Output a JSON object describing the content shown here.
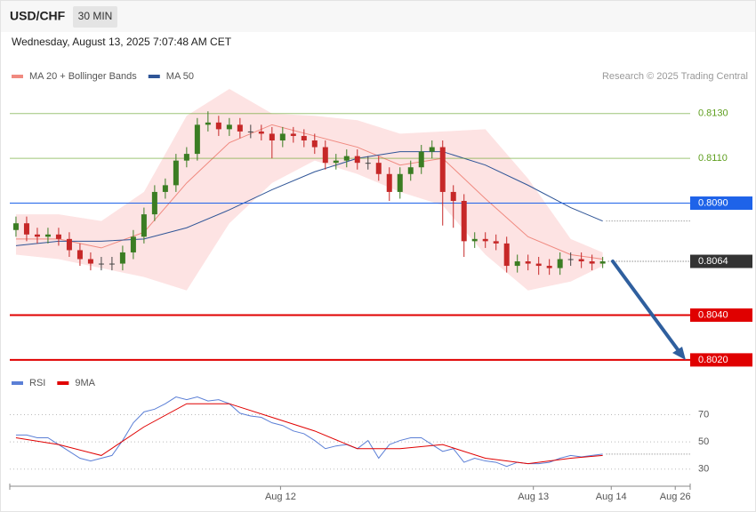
{
  "header": {
    "symbol": "USD/CHF",
    "timeframe": "30 MIN",
    "date": "Wednesday, August 13, 2025 7:07:48 AM CET"
  },
  "credit": "Research © 2025 Trading Central",
  "chart_data": [
    {
      "type": "candlestick",
      "xlim": [
        -0.58,
        63.2
      ],
      "ylim": [
        0.8014,
        0.8143
      ],
      "x": [
        0,
        1,
        2,
        3,
        4,
        5,
        6,
        7,
        8,
        9,
        10,
        11,
        12,
        13,
        14,
        15,
        16,
        17,
        18,
        19,
        20,
        21,
        22,
        23,
        24,
        25,
        26,
        27,
        28,
        29,
        30,
        31,
        32,
        33,
        34,
        35,
        36,
        37,
        38,
        39,
        40,
        41,
        42,
        43,
        44,
        45,
        46,
        47,
        48,
        49,
        50,
        51,
        52,
        53,
        54,
        55
      ],
      "candles": {
        "up_color": "#3b7d23",
        "down_color": "#c62828",
        "open": [
          0.8078,
          0.8081,
          0.8076,
          0.8075,
          0.8076,
          0.8074,
          0.8069,
          0.8065,
          0.8063,
          0.8063,
          0.8063,
          0.8068,
          0.8075,
          0.8085,
          0.8095,
          0.8098,
          0.8109,
          0.8112,
          0.8125,
          0.8126,
          0.8123,
          0.8125,
          0.8122,
          0.8122,
          0.8121,
          0.8118,
          0.8121,
          0.812,
          0.8118,
          0.8115,
          0.8108,
          0.8109,
          0.8111,
          0.8108,
          0.8108,
          0.8103,
          0.8095,
          0.8103,
          0.8106,
          0.8113,
          0.8115,
          0.8095,
          0.8091,
          0.8073,
          0.8074,
          0.8073,
          0.8072,
          0.8062,
          0.8064,
          0.8063,
          0.8062,
          0.8061,
          0.8065,
          0.8065,
          0.8064,
          0.8063
        ],
        "high": [
          0.8084,
          0.8084,
          0.8079,
          0.8079,
          0.8079,
          0.8077,
          0.8072,
          0.8068,
          0.8066,
          0.8066,
          0.8071,
          0.8078,
          0.8088,
          0.8098,
          0.8101,
          0.8112,
          0.8115,
          0.8128,
          0.8131,
          0.8129,
          0.8128,
          0.8128,
          0.8125,
          0.8125,
          0.8124,
          0.8124,
          0.8124,
          0.8123,
          0.8121,
          0.8118,
          0.8112,
          0.8114,
          0.8114,
          0.8111,
          0.8111,
          0.8106,
          0.8106,
          0.8109,
          0.8116,
          0.8118,
          0.8118,
          0.8098,
          0.8094,
          0.8077,
          0.8077,
          0.8076,
          0.8075,
          0.8067,
          0.8067,
          0.8066,
          0.8065,
          0.8068,
          0.8068,
          0.8068,
          0.8067,
          0.8066
        ],
        "low": [
          0.8075,
          0.8073,
          0.8072,
          0.8072,
          0.8071,
          0.8066,
          0.8062,
          0.806,
          0.806,
          0.806,
          0.806,
          0.8065,
          0.8072,
          0.8082,
          0.8092,
          0.8095,
          0.8106,
          0.8109,
          0.8122,
          0.812,
          0.812,
          0.8119,
          0.8119,
          0.8118,
          0.811,
          0.8115,
          0.8117,
          0.8115,
          0.8112,
          0.8105,
          0.8105,
          0.8106,
          0.8105,
          0.8105,
          0.81,
          0.8091,
          0.8092,
          0.81,
          0.8103,
          0.811,
          0.808,
          0.8079,
          0.8066,
          0.807,
          0.807,
          0.8069,
          0.8059,
          0.8059,
          0.806,
          0.8058,
          0.8058,
          0.8058,
          0.8062,
          0.8061,
          0.806,
          0.8061
        ],
        "close": [
          0.8081,
          0.8076,
          0.8075,
          0.8076,
          0.8074,
          0.8069,
          0.8065,
          0.8063,
          0.8063,
          0.8063,
          0.8068,
          0.8075,
          0.8085,
          0.8095,
          0.8098,
          0.8109,
          0.8112,
          0.8125,
          0.8126,
          0.8123,
          0.8125,
          0.8122,
          0.8122,
          0.8121,
          0.8118,
          0.8121,
          0.812,
          0.8118,
          0.8115,
          0.8108,
          0.8109,
          0.8111,
          0.8108,
          0.8108,
          0.8103,
          0.8095,
          0.8103,
          0.8106,
          0.8113,
          0.8115,
          0.8095,
          0.8091,
          0.8073,
          0.8074,
          0.8073,
          0.8072,
          0.8062,
          0.8064,
          0.8063,
          0.8062,
          0.8061,
          0.8065,
          0.8065,
          0.8064,
          0.8063,
          0.8064
        ]
      },
      "series": [
        {
          "name": "MA 20 + Bollinger Bands",
          "color": "#f08a80",
          "band_color": "#fde3e3",
          "x": [
            0,
            4,
            8,
            12,
            16,
            20,
            24,
            28,
            32,
            36,
            40,
            44,
            48,
            52,
            55
          ],
          "values": [
            0.8074,
            0.8074,
            0.807,
            0.8077,
            0.8099,
            0.8117,
            0.8125,
            0.812,
            0.8115,
            0.8107,
            0.811,
            0.8092,
            0.8075,
            0.8067,
            0.8065
          ],
          "upper": [
            0.8085,
            0.8085,
            0.8082,
            0.8095,
            0.8129,
            0.8141,
            0.813,
            0.8129,
            0.8127,
            0.8121,
            0.8122,
            0.8123,
            0.8101,
            0.8074,
            0.8068
          ],
          "lower": [
            0.8067,
            0.8065,
            0.8061,
            0.8057,
            0.8051,
            0.8081,
            0.8099,
            0.8109,
            0.8103,
            0.8095,
            0.8089,
            0.8067,
            0.8051,
            0.8055,
            0.8062
          ]
        },
        {
          "name": "MA 50",
          "color": "#2f5597",
          "x": [
            0,
            4,
            8,
            12,
            16,
            20,
            24,
            28,
            32,
            36,
            40,
            44,
            48,
            52,
            55
          ],
          "values": [
            0.8071,
            0.8073,
            0.8073,
            0.8074,
            0.8079,
            0.8087,
            0.8096,
            0.8104,
            0.811,
            0.8113,
            0.8113,
            0.8107,
            0.8098,
            0.8088,
            0.8082
          ]
        }
      ],
      "levels": [
        {
          "value": 0.813,
          "label": "0.8130",
          "color": "#5e9e1e",
          "style": "thin",
          "boxed": false
        },
        {
          "value": 0.811,
          "label": "0.8110",
          "color": "#5e9e1e",
          "style": "thin",
          "boxed": false
        },
        {
          "value": 0.809,
          "label": "0.8090",
          "color": "#1e63e9",
          "style": "thin",
          "boxed": true
        },
        {
          "value": 0.8064,
          "label": "0.8064",
          "color": "#333333",
          "style": "current",
          "boxed": true
        },
        {
          "value": 0.804,
          "label": "0.8040",
          "color": "#e00000",
          "style": "bold",
          "boxed": true
        },
        {
          "value": 0.802,
          "label": "0.8020",
          "color": "#e00000",
          "style": "bold",
          "boxed": true
        }
      ]
    },
    {
      "type": "line",
      "xlim": [
        -0.58,
        63.2
      ],
      "ylim": [
        22,
        84
      ],
      "yticks": [
        70,
        50,
        30
      ],
      "grid": true,
      "xticks": [
        {
          "value": 24.8,
          "label": "Aug 12"
        },
        {
          "value": 48.5,
          "label": "Aug 13"
        },
        {
          "value": 55.8,
          "label": "Aug 14"
        },
        {
          "value": 61.8,
          "label": "Aug 26"
        }
      ],
      "series": [
        {
          "name": "RSI",
          "color": "#5b7fd6",
          "x": [
            0,
            1,
            2,
            3,
            4,
            5,
            6,
            7,
            8,
            9,
            10,
            11,
            12,
            13,
            14,
            15,
            16,
            17,
            18,
            19,
            20,
            21,
            22,
            23,
            24,
            25,
            26,
            27,
            28,
            29,
            30,
            31,
            32,
            33,
            34,
            35,
            36,
            37,
            38,
            39,
            40,
            41,
            42,
            43,
            44,
            45,
            46,
            47,
            48,
            49,
            50,
            51,
            52,
            53,
            54,
            55
          ],
          "values": [
            55,
            55,
            53,
            53,
            48,
            43,
            38,
            36,
            38,
            40,
            51,
            64,
            72,
            74,
            78,
            83,
            81,
            83,
            80,
            81,
            78,
            71,
            69,
            68,
            64,
            62,
            58,
            56,
            51,
            45,
            47,
            48,
            45,
            51,
            38,
            48,
            51,
            53,
            53,
            48,
            43,
            45,
            35,
            38,
            36,
            35,
            32,
            35,
            34,
            34,
            35,
            38,
            40,
            39,
            40,
            41
          ]
        },
        {
          "name": "9MA",
          "color": "#e00000",
          "x": [
            0,
            4,
            8,
            12,
            16,
            20,
            24,
            28,
            32,
            36,
            40,
            44,
            48,
            52,
            55
          ],
          "values": [
            53,
            48,
            40,
            61,
            78,
            78,
            68,
            58,
            45,
            45,
            48,
            38,
            34,
            38,
            40
          ]
        }
      ]
    }
  ]
}
